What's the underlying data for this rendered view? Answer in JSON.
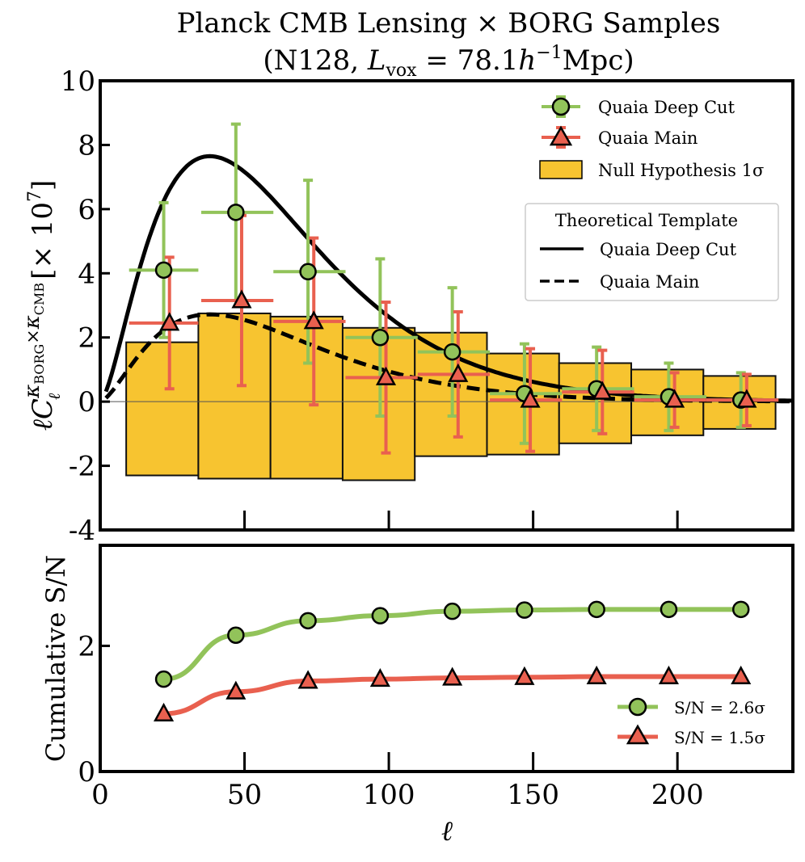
{
  "chart_data": [
    {
      "type": "errorbar",
      "title": "Planck CMB Lensing × BORG Samples",
      "subtitle": {
        "prefix": "(N128, ",
        "L": "L",
        "vox": "vox",
        "mid": " = 78.1",
        "h": "h",
        "exp": "−1",
        "suffix": "Mpc)"
      },
      "ylabel": {
        "a": "ℓ",
        "C": "C",
        "ell_sub": "ℓ",
        "kappa1": "κ",
        "borg": "BORG",
        "times": "×",
        "kappa2": "κ",
        "cmb": "CMB",
        "bracket_open": "[",
        "times10": "× 10",
        "exp": "7",
        "bracket_close": "]"
      },
      "xlabel": "ℓ",
      "xlim": [
        0,
        240
      ],
      "ylim": [
        -4,
        10
      ],
      "yticks": [
        -4,
        -2,
        0,
        2,
        4,
        6,
        8,
        10
      ],
      "ytick_labels": [
        "-4",
        "-2",
        "0",
        "2",
        "4",
        "6",
        "8",
        "10"
      ],
      "series": [
        {
          "name": "Quaia Deep Cut",
          "marker": "circle",
          "color": "#92c35a",
          "x": [
            22,
            47,
            72,
            97,
            122,
            147,
            172,
            197,
            222
          ],
          "y": [
            4.1,
            5.9,
            4.05,
            2.0,
            1.55,
            0.25,
            0.4,
            0.15,
            0.05
          ],
          "yerr": [
            2.1,
            2.75,
            2.85,
            2.45,
            2.0,
            1.55,
            1.3,
            1.05,
            0.85
          ],
          "x_low": [
            10,
            35,
            60,
            85,
            110,
            135,
            160,
            185,
            210
          ],
          "x_high": [
            34,
            60,
            85,
            110,
            135,
            160,
            185,
            210,
            235
          ]
        },
        {
          "name": "Quaia Main",
          "marker": "triangle",
          "color": "#e9604f",
          "x": [
            24,
            49,
            74,
            99,
            124,
            149,
            174,
            199,
            224
          ],
          "y": [
            2.45,
            3.15,
            2.5,
            0.75,
            0.85,
            0.05,
            0.3,
            0.05,
            0.05
          ],
          "yerr": [
            2.05,
            2.65,
            2.6,
            2.35,
            1.95,
            1.6,
            1.3,
            0.85,
            0.8
          ],
          "x_low": [
            10,
            35,
            60,
            85,
            110,
            135,
            160,
            185,
            210
          ],
          "x_high": [
            34,
            60,
            85,
            110,
            135,
            160,
            185,
            210,
            235
          ]
        }
      ],
      "null_hypothesis": {
        "name": "Null Hypothesis 1σ",
        "color": "#f7c430",
        "bins": [
          {
            "lo": 9,
            "hi": 34,
            "top": 1.85,
            "bottom": -2.3
          },
          {
            "lo": 34,
            "hi": 59,
            "top": 2.75,
            "bottom": -2.4
          },
          {
            "lo": 59,
            "hi": 84,
            "top": 2.65,
            "bottom": -2.4
          },
          {
            "lo": 84,
            "hi": 109,
            "top": 2.3,
            "bottom": -2.45
          },
          {
            "lo": 109,
            "hi": 134,
            "top": 2.15,
            "bottom": -1.7
          },
          {
            "lo": 134,
            "hi": 159,
            "top": 1.5,
            "bottom": -1.65
          },
          {
            "lo": 159,
            "hi": 184,
            "top": 1.2,
            "bottom": -1.3
          },
          {
            "lo": 184,
            "hi": 209,
            "top": 1.0,
            "bottom": -1.05
          },
          {
            "lo": 209,
            "hi": 234,
            "top": 0.8,
            "bottom": -0.85
          }
        ]
      },
      "templates": {
        "title": "Theoretical Template",
        "lines": [
          {
            "name": "Quaia Deep Cut",
            "style": "solid",
            "amplitude": 7.65,
            "peak": 38
          },
          {
            "name": "Quaia Main",
            "style": "dashed",
            "amplitude": 2.72,
            "peak": 38
          }
        ]
      },
      "legend": [
        "Quaia Deep Cut",
        "Quaia Main",
        "Null Hypothesis 1σ"
      ]
    },
    {
      "type": "line",
      "ylabel": "Cumulative S/N",
      "xlabel": "ℓ",
      "xlim": [
        0,
        240
      ],
      "ylim": [
        0,
        3.6
      ],
      "yticks": [
        0,
        2
      ],
      "ytick_labels": [
        "0",
        "2"
      ],
      "xticks": [
        0,
        50,
        100,
        150,
        200
      ],
      "xtick_labels": [
        "0",
        "50",
        "100",
        "150",
        "200"
      ],
      "series": [
        {
          "name": "S/N = 2.6σ",
          "marker": "circle",
          "color": "#92c35a",
          "x": [
            22,
            47,
            72,
            97,
            122,
            147,
            172,
            197,
            222
          ],
          "y": [
            1.47,
            2.17,
            2.4,
            2.48,
            2.55,
            2.57,
            2.58,
            2.58,
            2.58
          ]
        },
        {
          "name": "S/N = 1.5σ",
          "marker": "triangle",
          "color": "#e9604f",
          "x": [
            22,
            47,
            72,
            97,
            122,
            147,
            172,
            197,
            222
          ],
          "y": [
            0.92,
            1.27,
            1.44,
            1.47,
            1.49,
            1.5,
            1.51,
            1.51,
            1.51
          ]
        }
      ],
      "legend": [
        "S/N = 2.6σ",
        "S/N = 1.5σ"
      ]
    }
  ]
}
